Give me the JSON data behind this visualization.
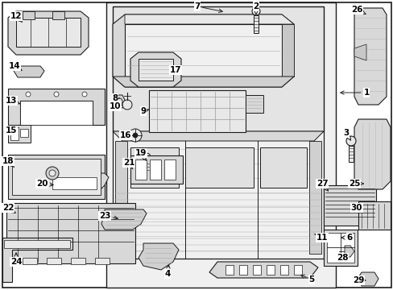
{
  "bg_color": "#ffffff",
  "fig_width": 4.89,
  "fig_height": 3.6,
  "dpi": 100,
  "gray_fill": "#e8e8e8",
  "light_gray": "#f0f0f0",
  "mid_gray": "#d0d0d0",
  "dark_line": "#1a1a1a",
  "label_fontsize": 7.5,
  "arrow_lw": 0.7
}
